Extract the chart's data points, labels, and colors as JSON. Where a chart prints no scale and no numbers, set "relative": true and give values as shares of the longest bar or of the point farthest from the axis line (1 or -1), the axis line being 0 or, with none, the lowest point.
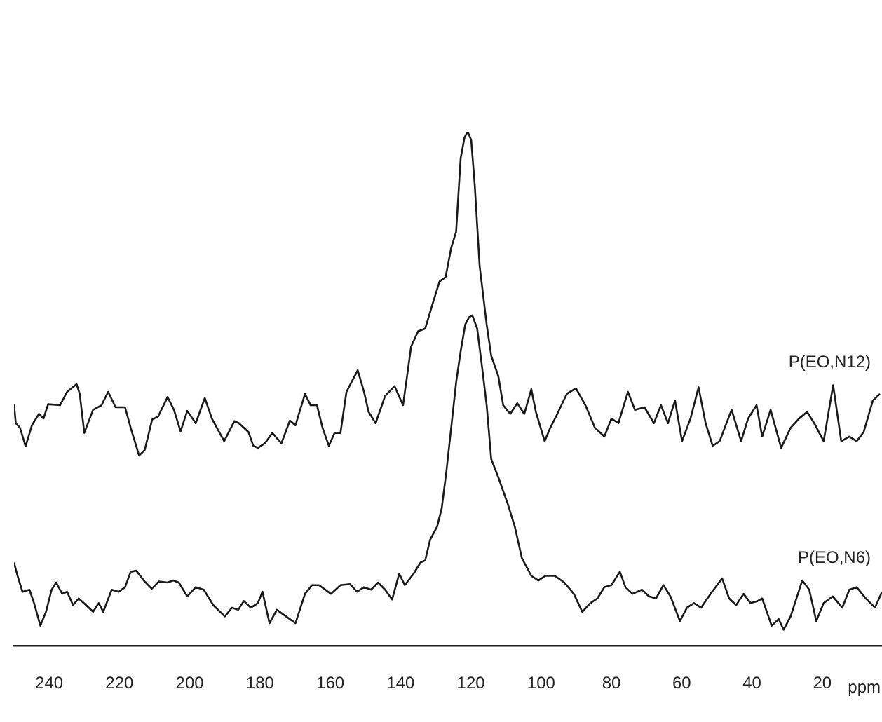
{
  "chart_data": {
    "type": "line",
    "relative": true,
    "xlabel": "ppm",
    "xlim": [
      250,
      3
    ],
    "xticks": [
      240,
      220,
      200,
      180,
      160,
      140,
      120,
      100,
      80,
      60,
      40,
      20
    ],
    "grid": false,
    "legend": false,
    "marker": "none",
    "line_style": "solid",
    "series": [
      {
        "name": "P(EO,N12)",
        "color": "#1a1a1a",
        "x": [
          250,
          249.5,
          248.3,
          246.7,
          244.9,
          242.9,
          241.6,
          240.3,
          236.9,
          234.9,
          232.2,
          231.3,
          230,
          227.5,
          225.1,
          223.2,
          221.1,
          218.4,
          216.8,
          214.4,
          212.8,
          210.7,
          209,
          206.3,
          204.5,
          202.6,
          200.7,
          198.3,
          195.7,
          193.7,
          190.2,
          187.3,
          186,
          183.3,
          181.9,
          180.6,
          178.6,
          176.5,
          173.9,
          171.5,
          169.9,
          167.2,
          165.6,
          163.8,
          162.2,
          160.4,
          158.8,
          157.1,
          155.4,
          152.2,
          150.4,
          149.1,
          147.1,
          144.4,
          141.7,
          139.3,
          137,
          135,
          133,
          130.9,
          128.9,
          127.2,
          125.6,
          124.2,
          122.9,
          121.8,
          120.9,
          119.9,
          118.9,
          117.5,
          115.5,
          114.2,
          112.2,
          110.8,
          108.8,
          106.8,
          104.8,
          102.8,
          101.5,
          99,
          97.4,
          95.4,
          92.7,
          90.1,
          87.4,
          84.7,
          82,
          80,
          78,
          75.3,
          73.3,
          70.6,
          67.9,
          65.9,
          63.9,
          61.9,
          59.9,
          57.5,
          55.2,
          53.2,
          51.2,
          49.2,
          45.8,
          43.1,
          41.1,
          38.7,
          37.1,
          34.7,
          31.7,
          29,
          26.6,
          24.3,
          22.3,
          19.6,
          16.9,
          14.6,
          12.3,
          10.2,
          8.2,
          5.6,
          3.6
        ],
        "values": [
          0.47,
          0.433,
          0.424,
          0.388,
          0.429,
          0.451,
          0.442,
          0.47,
          0.468,
          0.494,
          0.509,
          0.49,
          0.414,
          0.459,
          0.468,
          0.494,
          0.464,
          0.464,
          0.424,
          0.37,
          0.381,
          0.44,
          0.446,
          0.484,
          0.459,
          0.417,
          0.457,
          0.433,
          0.482,
          0.442,
          0.398,
          0.437,
          0.433,
          0.416,
          0.389,
          0.385,
          0.394,
          0.414,
          0.394,
          0.438,
          0.429,
          0.49,
          0.468,
          0.468,
          0.424,
          0.389,
          0.414,
          0.414,
          0.494,
          0.536,
          0.494,
          0.455,
          0.433,
          0.486,
          0.505,
          0.468,
          0.582,
          0.612,
          0.617,
          0.665,
          0.709,
          0.717,
          0.774,
          0.805,
          0.949,
          0.989,
          1,
          0.984,
          0.897,
          0.739,
          0.625,
          0.564,
          0.525,
          0.468,
          0.451,
          0.472,
          0.451,
          0.499,
          0.455,
          0.398,
          0.424,
          0.451,
          0.49,
          0.501,
          0.468,
          0.424,
          0.407,
          0.442,
          0.433,
          0.494,
          0.459,
          0.464,
          0.433,
          0.468,
          0.433,
          0.477,
          0.398,
          0.442,
          0.503,
          0.433,
          0.389,
          0.398,
          0.459,
          0.398,
          0.442,
          0.468,
          0.407,
          0.459,
          0.385,
          0.424,
          0.442,
          0.455,
          0.433,
          0.398,
          0.507,
          0.398,
          0.407,
          0.398,
          0.416,
          0.477,
          0.49
        ]
      },
      {
        "name": "P(EO,N6)",
        "color": "#1a1a1a",
        "x": [
          250,
          249,
          247.6,
          245.6,
          244.3,
          242.5,
          240.9,
          239.3,
          238,
          236.3,
          234.9,
          233.2,
          231.6,
          229.5,
          227.5,
          225.9,
          224.6,
          222.2,
          220.2,
          218.4,
          216.8,
          215.2,
          213.1,
          210.8,
          208.8,
          206.3,
          204.7,
          203.1,
          200.7,
          198.3,
          196,
          193.3,
          190,
          188,
          186.2,
          184.6,
          182.6,
          180.6,
          179.3,
          177.3,
          175.2,
          172.6,
          169.9,
          167.2,
          165.2,
          163.2,
          159.8,
          157.1,
          154.4,
          152.4,
          150.4,
          148.4,
          146.4,
          144.4,
          142.4,
          140.4,
          138.8,
          136.3,
          134.3,
          133,
          131.6,
          129.6,
          128.3,
          127,
          125.6,
          124.2,
          122.9,
          121.6,
          120.5,
          119.6,
          118.2,
          116.9,
          115.5,
          114.2,
          112.2,
          109.5,
          107.5,
          105.5,
          102.8,
          100.8,
          98.8,
          96.1,
          93.4,
          90.7,
          88.3,
          86,
          84,
          82,
          80,
          77.6,
          76,
          74,
          71.3,
          69.3,
          67.3,
          65.2,
          63.2,
          60.5,
          58.5,
          56.5,
          54.5,
          51.8,
          48.5,
          46.5,
          44.5,
          42.4,
          40.4,
          38.4,
          37.1,
          34.4,
          32.4,
          31,
          29,
          25.7,
          23.7,
          21.7,
          19.6,
          17,
          14.3,
          12.3,
          10.2,
          7.6,
          5,
          3
        ],
        "values": [
          0.162,
          0.136,
          0.105,
          0.109,
          0.083,
          0.039,
          0.066,
          0.109,
          0.123,
          0.101,
          0.105,
          0.079,
          0.092,
          0.079,
          0.066,
          0.083,
          0.066,
          0.109,
          0.105,
          0.114,
          0.144,
          0.146,
          0.127,
          0.111,
          0.125,
          0.123,
          0.127,
          0.123,
          0.096,
          0.114,
          0.109,
          0.079,
          0.057,
          0.074,
          0.07,
          0.087,
          0.074,
          0.083,
          0.105,
          0.044,
          0.07,
          0.057,
          0.044,
          0.101,
          0.118,
          0.118,
          0.101,
          0.118,
          0.12,
          0.105,
          0.114,
          0.109,
          0.123,
          0.109,
          0.09,
          0.14,
          0.118,
          0.14,
          0.162,
          0.166,
          0.206,
          0.232,
          0.267,
          0.337,
          0.424,
          0.512,
          0.573,
          0.625,
          0.639,
          0.643,
          0.617,
          0.547,
          0.468,
          0.363,
          0.328,
          0.276,
          0.232,
          0.171,
          0.136,
          0.127,
          0.136,
          0.136,
          0.123,
          0.101,
          0.066,
          0.083,
          0.092,
          0.114,
          0.118,
          0.144,
          0.114,
          0.101,
          0.109,
          0.096,
          0.092,
          0.118,
          0.096,
          0.048,
          0.074,
          0.083,
          0.074,
          0.101,
          0.131,
          0.092,
          0.079,
          0.101,
          0.083,
          0.087,
          0.092,
          0.039,
          0.052,
          0.031,
          0.057,
          0.127,
          0.109,
          0.048,
          0.083,
          0.096,
          0.074,
          0.109,
          0.114,
          0.092,
          0.074,
          0.105
        ]
      }
    ]
  }
}
